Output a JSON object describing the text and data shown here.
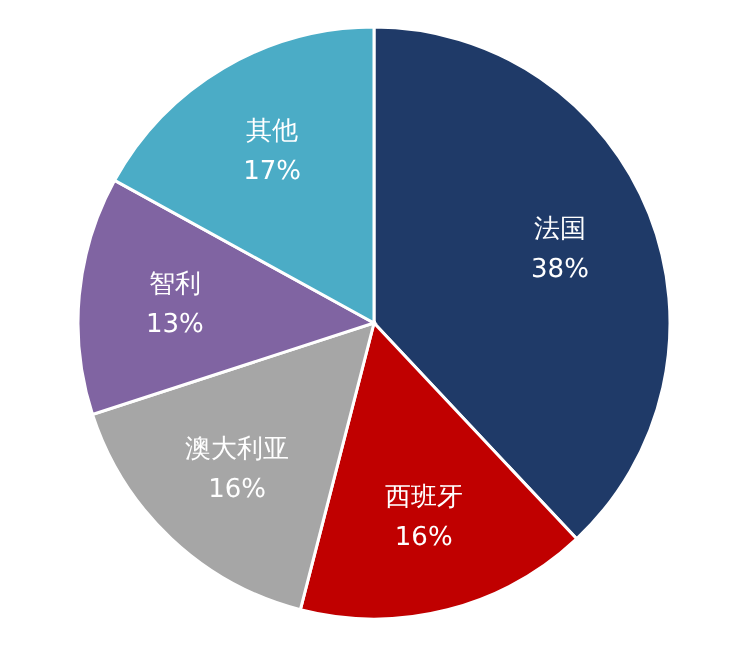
{
  "chart_data": {
    "type": "pie",
    "categories": [
      "法国",
      "西班牙",
      "澳大利亚",
      "智利",
      "其他"
    ],
    "values": [
      38,
      16,
      16,
      13,
      17
    ],
    "colors": [
      "#1f3a68",
      "#c00000",
      "#a6a6a6",
      "#8064a2",
      "#4bacc6"
    ],
    "value_labels": [
      "38%",
      "16%",
      "16%",
      "13%",
      "17%"
    ]
  }
}
